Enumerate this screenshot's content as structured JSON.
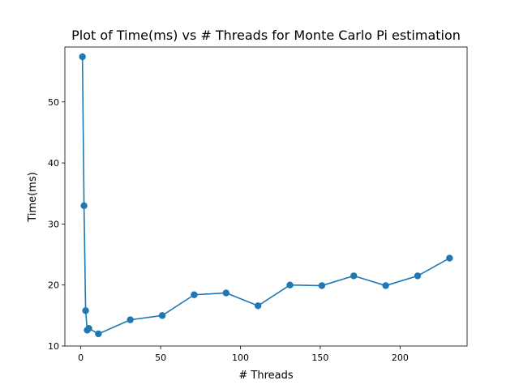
{
  "chart_data": {
    "type": "line",
    "title": "Plot of Time(ms) vs # Threads for Monte Carlo Pi estimation",
    "xlabel": "# Threads",
    "ylabel": "Time(ms)",
    "xlim": [
      -10,
      242
    ],
    "ylim": [
      10,
      59
    ],
    "xticks": [
      0,
      50,
      100,
      150,
      200
    ],
    "yticks": [
      10,
      20,
      30,
      40,
      50
    ],
    "grid": false,
    "marker": "circle",
    "color": "#1f77b4",
    "series": [
      {
        "x": [
          1,
          2,
          3,
          4,
          5,
          11,
          31,
          51,
          71,
          91,
          111,
          131,
          151,
          171,
          191,
          211,
          231
        ],
        "y": [
          57.4,
          33.0,
          15.8,
          12.6,
          12.9,
          12.0,
          14.3,
          15.0,
          18.4,
          18.7,
          16.6,
          20.0,
          19.9,
          21.5,
          19.9,
          21.5,
          24.4
        ]
      }
    ]
  }
}
